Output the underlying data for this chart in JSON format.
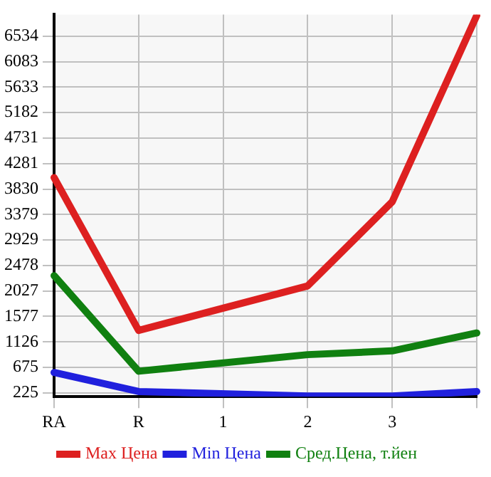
{
  "chart_data": {
    "type": "line",
    "categories": [
      "RA",
      "R",
      "1",
      "2",
      "3",
      null
    ],
    "series": [
      {
        "name": "Max Цена",
        "color": "#dd2020",
        "values": [
          4033,
          1329,
          null,
          2117,
          3605,
          6900
        ]
      },
      {
        "name": "Min Цена",
        "color": "#2020dd",
        "values": [
          585,
          248,
          null,
          170,
          170,
          248
        ]
      },
      {
        "name": "Сред.Цена, т.йен",
        "color": "#108010",
        "values": [
          2298,
          608,
          null,
          901,
          968,
          1284
        ]
      }
    ],
    "ylim": [
      157,
      6917
    ],
    "yticks": [
      225,
      675,
      1126,
      1577,
      2027,
      2478,
      2929,
      3379,
      3830,
      4281,
      4731,
      5182,
      5633,
      6083,
      6534
    ],
    "grid": true,
    "legend": "bottom",
    "marker": "none",
    "line_style": "solid"
  }
}
